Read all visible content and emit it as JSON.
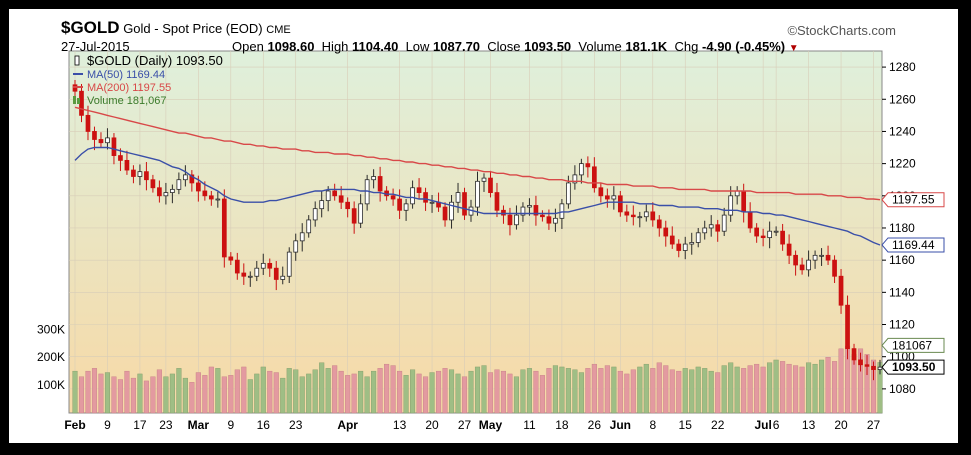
{
  "header": {
    "symbol": "$GOLD",
    "name": "Gold - Spot Price (EOD)",
    "exchange": "CME",
    "date": "27-Jul-2015",
    "brand": "©StockCharts.com",
    "open_label": "Open",
    "open": "1098.60",
    "high_label": "High",
    "high": "1104.40",
    "low_label": "Low",
    "low": "1087.70",
    "close_label": "Close",
    "close": "1093.50",
    "volume_label": "Volume",
    "volume": "181.1K",
    "chg_label": "Chg",
    "chg": "-4.90 (-0.45%)"
  },
  "legend": {
    "main": "$GOLD (Daily) 1093.50",
    "ma50": "MA(50) 1169.44",
    "ma200": "MA(200) 1197.55",
    "volume": "Volume 181,067"
  },
  "colors": {
    "up": "#2a2a2a",
    "down": "#cc1111",
    "ma50": "#3a4fa8",
    "ma200": "#d84848",
    "vol_up": "#9fbe85",
    "vol_down": "#e39aa0",
    "bg_top": "#dff0dc",
    "bg_bottom": "#f7d9a6"
  },
  "chart_data": {
    "type": "candlestick",
    "title": "$GOLD (Daily) 1093.50",
    "y_range": [
      1065,
      1290
    ],
    "y_ticks": [
      1080,
      1100,
      1120,
      1140,
      1160,
      1180,
      1200,
      1220,
      1240,
      1260,
      1280
    ],
    "volume_ticks": [
      {
        "label": "100K",
        "value": 100000
      },
      {
        "label": "200K",
        "value": 200000
      },
      {
        "label": "300K",
        "value": 300000
      }
    ],
    "volume_max": 430000,
    "x_labels": [
      {
        "text": "Feb",
        "bold": true,
        "index": 0
      },
      {
        "text": "9",
        "bold": false,
        "index": 5
      },
      {
        "text": "17",
        "bold": false,
        "index": 10
      },
      {
        "text": "23",
        "bold": false,
        "index": 14
      },
      {
        "text": "Mar",
        "bold": true,
        "index": 19
      },
      {
        "text": "9",
        "bold": false,
        "index": 24
      },
      {
        "text": "16",
        "bold": false,
        "index": 29
      },
      {
        "text": "23",
        "bold": false,
        "index": 34
      },
      {
        "text": "Apr",
        "bold": true,
        "index": 42
      },
      {
        "text": "13",
        "bold": false,
        "index": 50
      },
      {
        "text": "20",
        "bold": false,
        "index": 55
      },
      {
        "text": "27",
        "bold": false,
        "index": 60
      },
      {
        "text": "May",
        "bold": true,
        "index": 64
      },
      {
        "text": "11",
        "bold": false,
        "index": 70
      },
      {
        "text": "18",
        "bold": false,
        "index": 75
      },
      {
        "text": "26",
        "bold": false,
        "index": 80
      },
      {
        "text": "Jun",
        "bold": true,
        "index": 84
      },
      {
        "text": "8",
        "bold": false,
        "index": 89
      },
      {
        "text": "15",
        "bold": false,
        "index": 94
      },
      {
        "text": "22",
        "bold": false,
        "index": 99
      },
      {
        "text": "Jul",
        "bold": true,
        "index": 106
      },
      {
        "text": "6",
        "bold": false,
        "index": 108
      },
      {
        "text": "13",
        "bold": false,
        "index": 113
      },
      {
        "text": "20",
        "bold": false,
        "index": 118
      },
      {
        "text": "27",
        "bold": false,
        "index": 123
      }
    ],
    "close_series": [
      1265,
      1250,
      1240,
      1235,
      1233,
      1236,
      1225,
      1222,
      1216,
      1212,
      1215,
      1210,
      1205,
      1200,
      1202,
      1204,
      1210,
      1213,
      1208,
      1203,
      1200,
      1198,
      1198,
      1162,
      1160,
      1152,
      1150,
      1150,
      1155,
      1158,
      1155,
      1148,
      1150,
      1165,
      1172,
      1177,
      1185,
      1192,
      1197,
      1203,
      1200,
      1196,
      1192,
      1183,
      1195,
      1210,
      1212,
      1203,
      1200,
      1198,
      1191,
      1195,
      1205,
      1202,
      1196,
      1196,
      1193,
      1185,
      1196,
      1202,
      1188,
      1193,
      1209,
      1211,
      1202,
      1191,
      1188,
      1182,
      1188,
      1193,
      1194,
      1188,
      1187,
      1183,
      1186,
      1195,
      1208,
      1213,
      1220,
      1218,
      1205,
      1200,
      1198,
      1200,
      1190,
      1188,
      1187,
      1187,
      1190,
      1185,
      1180,
      1175,
      1170,
      1166,
      1170,
      1171,
      1177,
      1180,
      1182,
      1178,
      1188,
      1200,
      1203,
      1190,
      1180,
      1175,
      1174,
      1178,
      1178,
      1170,
      1163,
      1157,
      1154,
      1160,
      1163,
      1163,
      1160,
      1150,
      1132,
      1105,
      1098,
      1095,
      1094,
      1092,
      1093.5
    ],
    "volume_series": [
      150000,
      130000,
      150000,
      160000,
      140000,
      145000,
      130000,
      120000,
      150000,
      125000,
      140000,
      115000,
      130000,
      155000,
      130000,
      140000,
      160000,
      125000,
      110000,
      145000,
      135000,
      165000,
      160000,
      130000,
      135000,
      155000,
      165000,
      120000,
      140000,
      165000,
      150000,
      145000,
      125000,
      160000,
      155000,
      130000,
      140000,
      155000,
      180000,
      160000,
      170000,
      150000,
      135000,
      140000,
      150000,
      130000,
      150000,
      160000,
      175000,
      170000,
      150000,
      135000,
      155000,
      140000,
      130000,
      145000,
      150000,
      160000,
      155000,
      140000,
      130000,
      150000,
      165000,
      170000,
      145000,
      155000,
      150000,
      140000,
      130000,
      155000,
      160000,
      150000,
      135000,
      160000,
      170000,
      165000,
      160000,
      155000,
      145000,
      160000,
      175000,
      160000,
      170000,
      165000,
      150000,
      140000,
      155000,
      165000,
      175000,
      160000,
      180000,
      170000,
      155000,
      150000,
      160000,
      155000,
      165000,
      160000,
      150000,
      145000,
      170000,
      180000,
      165000,
      160000,
      170000,
      175000,
      165000,
      180000,
      190000,
      185000,
      175000,
      170000,
      165000,
      180000,
      175000,
      190000,
      200000,
      185000,
      230000,
      240000,
      210000,
      230000,
      210000,
      190000,
      181067
    ],
    "ma50_series": [
      1222,
      1226,
      1229,
      1230,
      1230,
      1230,
      1229,
      1228,
      1227,
      1226,
      1225,
      1224,
      1223,
      1222,
      1220,
      1218,
      1217,
      1215,
      1212,
      1210,
      1207,
      1205,
      1203,
      1200,
      1198,
      1197,
      1196,
      1196,
      1196,
      1196,
      1197,
      1197,
      1198,
      1199,
      1200,
      1201,
      1202,
      1203,
      1203,
      1204,
      1204,
      1204,
      1204,
      1204,
      1203,
      1203,
      1202,
      1202,
      1201,
      1201,
      1200,
      1199,
      1199,
      1198,
      1198,
      1197,
      1196,
      1195,
      1194,
      1193,
      1192,
      1191,
      1190,
      1189,
      1189,
      1189,
      1189,
      1189,
      1189,
      1189,
      1189,
      1189,
      1189,
      1189,
      1189,
      1190,
      1190,
      1191,
      1192,
      1193,
      1194,
      1195,
      1196,
      1196,
      1196,
      1196,
      1196,
      1195,
      1195,
      1195,
      1194,
      1194,
      1194,
      1193,
      1193,
      1193,
      1193,
      1192,
      1192,
      1192,
      1191,
      1191,
      1191,
      1190,
      1190,
      1190,
      1189,
      1189,
      1188,
      1188,
      1187,
      1186,
      1185,
      1184,
      1183,
      1182,
      1181,
      1180,
      1179,
      1178,
      1176,
      1175,
      1173,
      1171,
      1169.44
    ],
    "ma200_series": [
      1255,
      1254,
      1253,
      1252,
      1251,
      1250,
      1249,
      1248,
      1247,
      1246,
      1245,
      1244,
      1243,
      1242,
      1241,
      1240,
      1239,
      1239,
      1238,
      1237,
      1236,
      1236,
      1235,
      1234,
      1234,
      1233,
      1232,
      1232,
      1231,
      1231,
      1230,
      1230,
      1229,
      1229,
      1229,
      1228,
      1228,
      1227,
      1227,
      1227,
      1226,
      1226,
      1226,
      1225,
      1225,
      1224,
      1224,
      1223,
      1223,
      1222,
      1222,
      1221,
      1221,
      1220,
      1220,
      1219,
      1219,
      1218,
      1218,
      1217,
      1217,
      1216,
      1216,
      1215,
      1215,
      1214,
      1214,
      1213,
      1213,
      1212,
      1212,
      1211,
      1211,
      1210,
      1210,
      1210,
      1209,
      1209,
      1209,
      1208,
      1208,
      1208,
      1207,
      1207,
      1207,
      1207,
      1206,
      1206,
      1206,
      1206,
      1205,
      1205,
      1205,
      1204,
      1204,
      1204,
      1204,
      1204,
      1203,
      1203,
      1203,
      1203,
      1203,
      1203,
      1203,
      1202,
      1202,
      1202,
      1202,
      1202,
      1202,
      1201,
      1201,
      1201,
      1201,
      1201,
      1200,
      1200,
      1200,
      1199,
      1199,
      1199,
      1198,
      1198,
      1197.55
    ],
    "price_tags": [
      {
        "label": "1197.55",
        "value": 1197.55,
        "color": "#d84848"
      },
      {
        "label": "1169.44",
        "value": 1169.44,
        "color": "#3a4fa8"
      },
      {
        "label": "181067",
        "value": 1107,
        "color": "#6a8a50"
      },
      {
        "label": "1093.50",
        "value": 1093.5,
        "color": "#000000"
      }
    ]
  }
}
